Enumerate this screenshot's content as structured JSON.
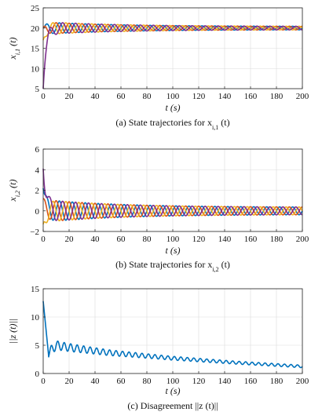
{
  "chart_data": [
    {
      "type": "line",
      "xlabel": "t (s)",
      "ylabel": "x_{i,1} (t)",
      "caption": "(a) State trajectories for x_{i,1} (t)",
      "xlim": [
        0,
        200
      ],
      "ylim": [
        5,
        25
      ],
      "xticks": [
        0,
        20,
        40,
        60,
        80,
        100,
        120,
        140,
        160,
        180,
        200
      ],
      "yticks": [
        5,
        10,
        15,
        20,
        25
      ],
      "grid": true,
      "series": [
        {
          "color": "#0072BD",
          "start": 20,
          "center": 20,
          "amp0": 1.5,
          "amp_end": 0.4,
          "period": 10,
          "phase": 0.0
        },
        {
          "color": "#D95319",
          "start": 20,
          "center": 20,
          "amp0": 1.5,
          "amp_end": 0.4,
          "period": 10,
          "phase": 1.57
        },
        {
          "color": "#EDB120",
          "start": 17,
          "center": 20,
          "amp0": 1.6,
          "amp_end": 0.4,
          "period": 10,
          "phase": 3.14
        },
        {
          "color": "#7E2F8E",
          "start": 5,
          "center": 20,
          "amp0": 1.6,
          "amp_end": 0.4,
          "period": 10,
          "phase": 4.71
        }
      ]
    },
    {
      "type": "line",
      "xlabel": "t (s)",
      "ylabel": "x_{i,2} (t)",
      "caption": "(b) State trajectories for x_{i,2} (t)",
      "xlim": [
        0,
        200
      ],
      "ylim": [
        -2,
        6
      ],
      "xticks": [
        0,
        20,
        40,
        60,
        80,
        100,
        120,
        140,
        160,
        180,
        200
      ],
      "yticks": [
        -2,
        0,
        2,
        4,
        6
      ],
      "grid": true,
      "series": [
        {
          "color": "#0072BD",
          "start": 2.2,
          "center": 0,
          "amp0": 1.1,
          "amp_end": 0.35,
          "period": 10,
          "phase": 0.0
        },
        {
          "color": "#D95319",
          "start": 1.2,
          "center": 0,
          "amp0": 1.1,
          "amp_end": 0.35,
          "period": 10,
          "phase": 1.57
        },
        {
          "color": "#EDB120",
          "start": -1.3,
          "center": 0,
          "amp0": 1.1,
          "amp_end": 0.35,
          "period": 10,
          "phase": 3.14
        },
        {
          "color": "#7E2F8E",
          "start": 4.1,
          "center": 0,
          "amp0": 1.1,
          "amp_end": 0.35,
          "period": 10,
          "phase": 4.71
        }
      ]
    },
    {
      "type": "line",
      "xlabel": "t (s)",
      "ylabel": "||z (t)||",
      "caption": "(c) Disagreement ||z (t)||",
      "xlim": [
        0,
        200
      ],
      "ylim": [
        0,
        15
      ],
      "xticks": [
        0,
        20,
        40,
        60,
        80,
        100,
        120,
        140,
        160,
        180,
        200
      ],
      "yticks": [
        0,
        5,
        10,
        15
      ],
      "grid": true,
      "series": [
        {
          "color": "#0072BD",
          "start": 12.8,
          "trend": [
            [
              0,
              12.8
            ],
            [
              4,
              3.6
            ],
            [
              10,
              5.0
            ],
            [
              20,
              4.6
            ],
            [
              50,
              3.7
            ],
            [
              100,
              2.7
            ],
            [
              150,
              1.9
            ],
            [
              200,
              1.25
            ]
          ],
          "amp0": 0.9,
          "amp_end": 0.2,
          "period": 5
        }
      ]
    }
  ]
}
